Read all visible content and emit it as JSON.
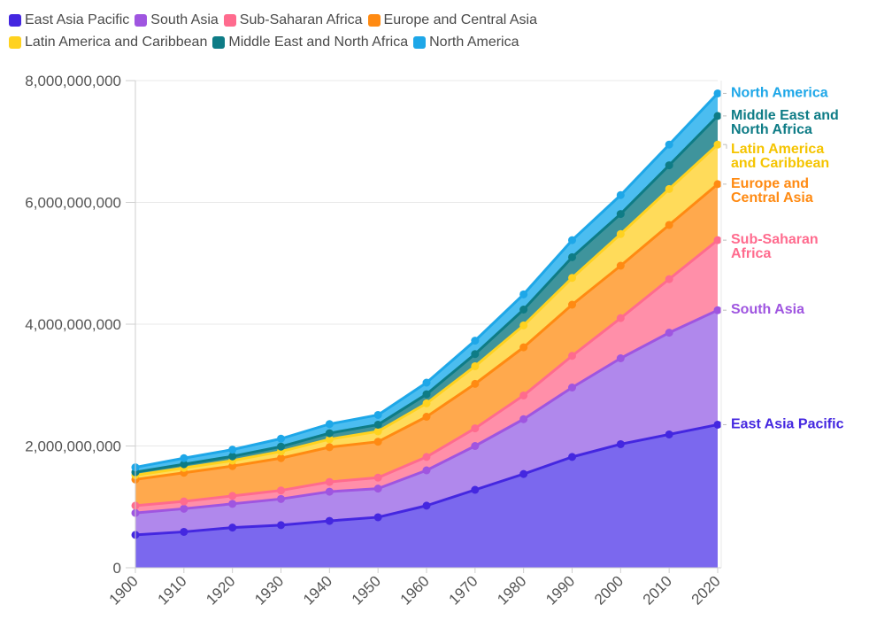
{
  "colors": {
    "axis": "#cfcfcf",
    "grid": "#e8e8e8",
    "tick_text": "#555555"
  },
  "chart_data": {
    "type": "area",
    "stacked": true,
    "title": "",
    "xlabel": "",
    "ylabel": "",
    "grid": "horizontal",
    "legend_position": "top-left",
    "x": [
      1900,
      1910,
      1920,
      1930,
      1940,
      1950,
      1960,
      1970,
      1980,
      1990,
      2000,
      2010,
      2020
    ],
    "x_tick_labels": [
      "1900",
      "1910",
      "1920",
      "1930",
      "1940",
      "1950",
      "1960",
      "1970",
      "1980",
      "1990",
      "2000",
      "2010",
      "2020"
    ],
    "ylim": [
      0,
      8000000000
    ],
    "y_ticks": [
      0,
      2000000000,
      4000000000,
      6000000000,
      8000000000
    ],
    "y_tick_labels": [
      "0",
      "2,000,000,000",
      "4,000,000,000",
      "6,000,000,000",
      "8,000,000,000"
    ],
    "series": [
      {
        "name": "East Asia Pacific",
        "end_label": [
          "East Asia Pacific"
        ],
        "line_color": "#4427e0",
        "fill_color": "#7b68ee",
        "label_color": "#4427e0",
        "values": [
          540000000,
          590000000,
          660000000,
          700000000,
          770000000,
          830000000,
          1020000000,
          1280000000,
          1540000000,
          1820000000,
          2030000000,
          2190000000,
          2350000000
        ]
      },
      {
        "name": "South Asia",
        "end_label": [
          "South Asia"
        ],
        "line_color": "#9f55e0",
        "fill_color": "#b088ec",
        "label_color": "#9f55e0",
        "values": [
          360000000,
          380000000,
          390000000,
          430000000,
          480000000,
          470000000,
          580000000,
          720000000,
          900000000,
          1140000000,
          1410000000,
          1670000000,
          1880000000
        ]
      },
      {
        "name": "Sub-Saharan Africa",
        "end_label": [
          "Sub-Saharan",
          "Africa"
        ],
        "line_color": "#ff6b8e",
        "fill_color": "#ff8fa9",
        "label_color": "#ff6b8e",
        "values": [
          120000000,
          120000000,
          130000000,
          140000000,
          160000000,
          180000000,
          220000000,
          290000000,
          390000000,
          520000000,
          660000000,
          880000000,
          1150000000
        ]
      },
      {
        "name": "Europe and Central Asia",
        "end_label": [
          "Europe and",
          "Central Asia"
        ],
        "line_color": "#ff8a12",
        "fill_color": "#ffa94d",
        "label_color": "#ff8a12",
        "values": [
          430000000,
          470000000,
          490000000,
          530000000,
          570000000,
          590000000,
          660000000,
          730000000,
          790000000,
          840000000,
          860000000,
          890000000,
          920000000
        ]
      },
      {
        "name": "Latin America and Caribbean",
        "end_label": [
          "Latin America",
          "and Caribbean"
        ],
        "line_color": "#ffd21f",
        "fill_color": "#ffdb5a",
        "label_color": "#f5c400",
        "values": [
          70000000,
          80000000,
          90000000,
          110000000,
          130000000,
          170000000,
          220000000,
          290000000,
          360000000,
          440000000,
          520000000,
          590000000,
          650000000
        ]
      },
      {
        "name": "Middle East and North Africa",
        "end_label": [
          "Middle East and",
          "North Africa"
        ],
        "line_color": "#0e7c86",
        "fill_color": "#3f949c",
        "label_color": "#0e7c86",
        "values": [
          50000000,
          60000000,
          70000000,
          80000000,
          100000000,
          110000000,
          150000000,
          200000000,
          260000000,
          340000000,
          330000000,
          390000000,
          470000000
        ]
      },
      {
        "name": "North America",
        "end_label": [
          "North America"
        ],
        "line_color": "#1ea7e8",
        "fill_color": "#4bbdf0",
        "label_color": "#1ea7e8",
        "values": [
          80000000,
          100000000,
          110000000,
          130000000,
          150000000,
          160000000,
          190000000,
          220000000,
          250000000,
          280000000,
          310000000,
          340000000,
          370000000
        ]
      }
    ]
  }
}
